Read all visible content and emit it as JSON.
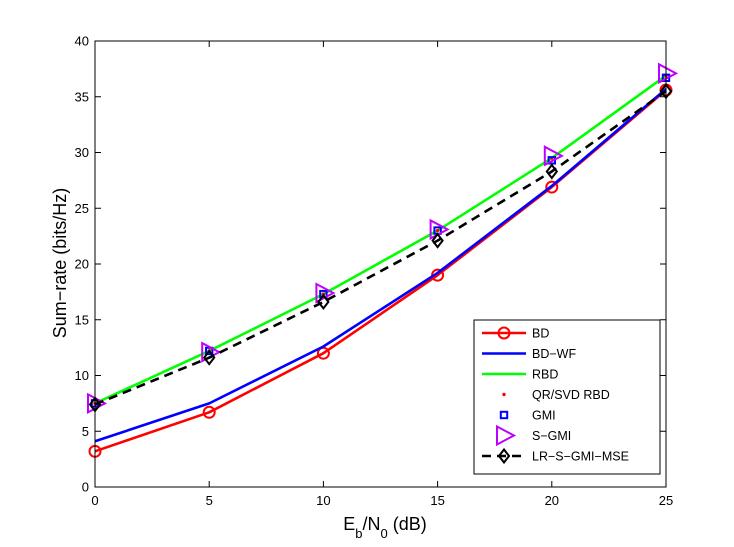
{
  "chart_data": {
    "type": "line",
    "xlabel_main": "E",
    "xlabel_sub1": "b",
    "xlabel_sep": "/N",
    "xlabel_sub2": "0",
    "xlabel_unit": " (dB)",
    "ylabel": "Sum−rate (bits/Hz)",
    "xlim": [
      0,
      25
    ],
    "ylim": [
      0,
      40
    ],
    "xticks": [
      0,
      5,
      10,
      15,
      20,
      25
    ],
    "yticks": [
      0,
      5,
      10,
      15,
      20,
      25,
      30,
      35,
      40
    ],
    "x": [
      0,
      5,
      10,
      15,
      20,
      25
    ],
    "grid": false,
    "legend_position": "lower-right",
    "series": [
      {
        "name": "BD",
        "color": "#ff0000",
        "line": "solid",
        "marker": "circle",
        "values": [
          3.2,
          6.7,
          12.0,
          19.0,
          26.9,
          35.6
        ]
      },
      {
        "name": "BD−WF",
        "color": "#0000ff",
        "line": "solid",
        "marker": "none",
        "values": [
          4.1,
          7.5,
          12.6,
          19.2,
          27.0,
          35.7
        ]
      },
      {
        "name": "RBD",
        "color": "#00ff00",
        "line": "solid",
        "marker": "none",
        "values": [
          7.5,
          12.2,
          17.3,
          23.0,
          29.5,
          36.9
        ]
      },
      {
        "name": "QR/SVD RBD",
        "color": "#ff0000",
        "line": "none",
        "marker": "dot",
        "values": [
          7.5,
          12.2,
          17.3,
          23.0,
          29.5,
          36.9
        ]
      },
      {
        "name": "GMI",
        "color": "#0000ff",
        "line": "none",
        "marker": "square",
        "values": [
          7.5,
          12.2,
          17.3,
          23.0,
          29.3,
          36.7
        ]
      },
      {
        "name": "S−GMI",
        "color": "#bf00ff",
        "line": "none",
        "marker": "triangle-right",
        "values": [
          7.5,
          12.1,
          17.4,
          23.1,
          29.7,
          37.1
        ]
      },
      {
        "name": "LR−S−GMI−MSE",
        "color": "#000000",
        "line": "dashed",
        "marker": "diamond",
        "values": [
          7.4,
          11.6,
          16.6,
          22.1,
          28.3,
          35.5
        ]
      }
    ]
  }
}
